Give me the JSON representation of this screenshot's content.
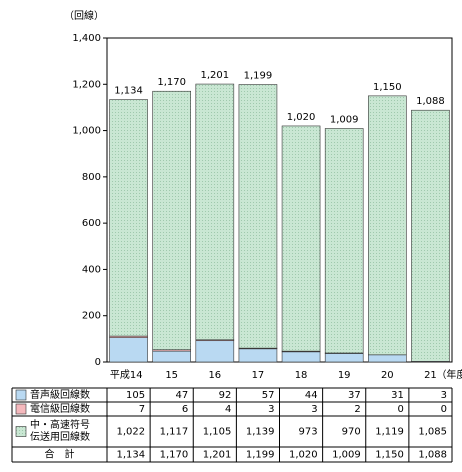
{
  "chart_data": {
    "type": "stacked-bar",
    "y_label": "（回線）",
    "categories": [
      "平成14",
      "15",
      "16",
      "17",
      "18",
      "19",
      "20",
      "21"
    ],
    "x_unit": "（年度末）",
    "ylim": [
      0,
      1400
    ],
    "yticks": [
      0,
      200,
      400,
      600,
      800,
      {
        "value": 1000,
        "label": "1,000"
      },
      {
        "value": 1200,
        "label": "1,200"
      },
      {
        "value": 1400,
        "label": "1,400"
      }
    ],
    "series": [
      {
        "name": "音声級回線数",
        "color": "#b9d9f2",
        "values": [
          105,
          47,
          92,
          57,
          44,
          37,
          31,
          3
        ],
        "value_labels": [
          "105",
          "47",
          "92",
          "57",
          "44",
          "37",
          "31",
          "3"
        ]
      },
      {
        "name": "電信級回線数",
        "color": "#f5b9bd",
        "values": [
          7,
          6,
          4,
          3,
          3,
          2,
          0,
          0
        ],
        "value_labels": [
          "7",
          "6",
          "4",
          "3",
          "3",
          "2",
          "0",
          "0"
        ]
      },
      {
        "name": "中・高速符号伝送用回線数",
        "color": "#c9e7d3",
        "values": [
          1022,
          1117,
          1105,
          1139,
          973,
          970,
          1119,
          1085
        ],
        "value_labels": [
          "1,022",
          "1,117",
          "1,105",
          "1,139",
          "973",
          "970",
          "1,119",
          "1,085"
        ]
      }
    ],
    "totals": {
      "name": "合　計",
      "values": [
        1134,
        1170,
        1201,
        1199,
        1020,
        1009,
        1150,
        1088
      ],
      "value_labels": [
        "1,134",
        "1,170",
        "1,201",
        "1,199",
        "1,020",
        "1,009",
        "1,150",
        "1,088"
      ]
    }
  }
}
